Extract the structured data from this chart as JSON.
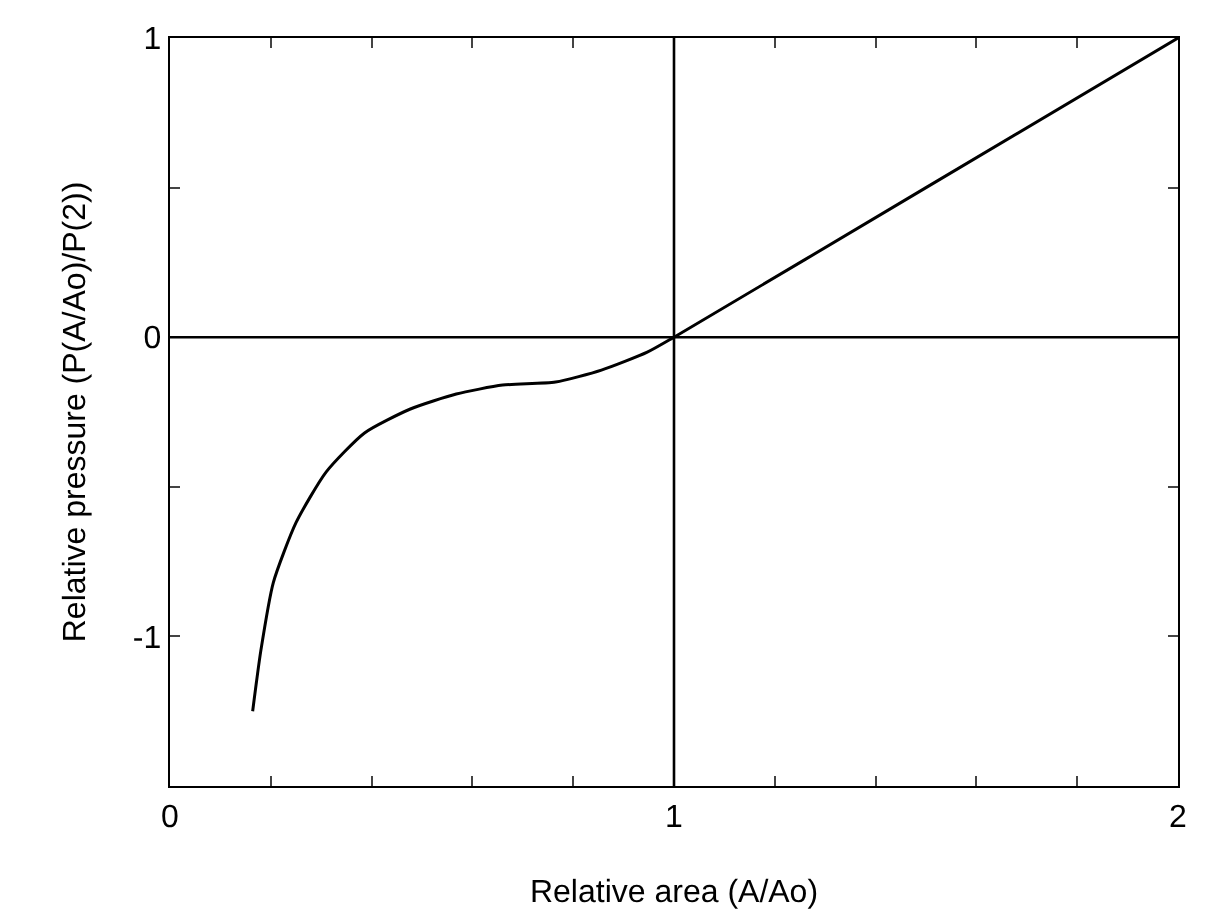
{
  "chart_data": {
    "type": "line",
    "xlabel": "Relative area (A/Ao)",
    "ylabel": "Relative pressure (P(A/Ao)/P(2))",
    "x": [
      0.164,
      0.18,
      0.205,
      0.25,
      0.31,
      0.386,
      0.477,
      0.568,
      0.66,
      0.765,
      0.856,
      0.947,
      1,
      1.5,
      2
    ],
    "series": [
      {
        "color": "#000000",
        "values": [
          -1.25,
          -1.05,
          -0.82,
          -0.62,
          -0.45,
          -0.32,
          -0.24,
          -0.19,
          -0.16,
          -0.15,
          -0.11,
          -0.05,
          0,
          0.5,
          1
        ]
      }
    ],
    "xlim": [
      0,
      2
    ],
    "ylim": [
      -1.5,
      1
    ],
    "xticks": [
      0,
      {
        "value": 0.2,
        "label": null
      },
      {
        "value": 0.4,
        "label": null
      },
      {
        "value": 0.6,
        "label": null
      },
      {
        "value": 0.8,
        "label": null
      },
      1,
      {
        "value": 1.2,
        "label": null
      },
      {
        "value": 1.4,
        "label": null
      },
      {
        "value": 1.6,
        "label": null
      },
      {
        "value": 1.8,
        "label": null
      },
      2
    ],
    "yticks": [
      {
        "value": -1.5,
        "label": null
      },
      -1,
      {
        "value": -0.5,
        "label": null
      },
      0,
      {
        "value": 0.5,
        "label": null
      },
      1
    ],
    "ref_lines": [
      {
        "axis": "x",
        "value": 1
      },
      {
        "axis": "y",
        "value": 0
      }
    ],
    "marker": "none",
    "line_style": "solid"
  }
}
